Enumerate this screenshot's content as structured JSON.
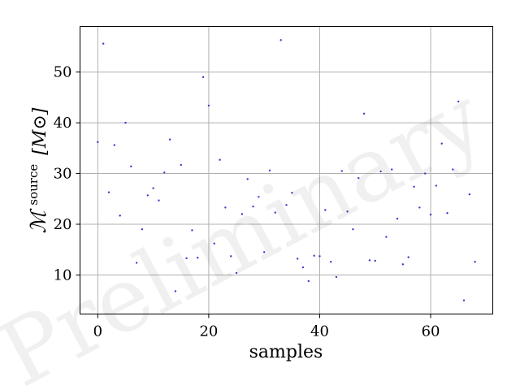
{
  "chart_data": {
    "type": "scatter",
    "xlabel": "samples",
    "ylabel_main": "ℳ",
    "ylabel_sup": "source",
    "ylabel_unit": "[M⊙]",
    "watermark": "Preliminary",
    "xlim": [
      -3.2,
      71.2
    ],
    "ylim": [
      2.3,
      59.0
    ],
    "x_ticks": [
      0,
      20,
      40,
      60
    ],
    "y_ticks": [
      10,
      20,
      30,
      40,
      50
    ],
    "grid": true,
    "colors": {
      "points": "#3a3acc",
      "grid": "#b0b0b0",
      "axes": "#000000",
      "watermark": "#e6e6e6"
    },
    "series": [
      {
        "x": [
          0,
          1,
          2,
          3,
          4,
          5,
          6,
          7,
          8,
          9,
          10,
          11,
          12,
          13,
          14,
          15,
          16,
          17,
          18,
          19,
          20,
          21,
          22,
          23,
          24,
          25,
          26,
          27,
          28,
          29,
          30,
          31,
          32,
          33,
          34,
          35,
          36,
          37,
          38,
          39,
          40,
          41,
          42,
          43,
          44,
          45,
          46,
          47,
          48,
          49,
          50,
          51,
          52,
          53,
          54,
          55,
          56,
          57,
          58,
          59,
          60,
          61,
          62,
          63,
          64,
          65,
          66,
          67,
          68
        ],
        "values": [
          36.2,
          55.6,
          26.3,
          35.6,
          21.7,
          40.0,
          31.4,
          12.4,
          19.0,
          25.7,
          27.1,
          24.7,
          30.2,
          36.7,
          6.8,
          31.7,
          13.3,
          18.8,
          13.4,
          49.0,
          43.4,
          16.2,
          32.7,
          23.3,
          13.7,
          10.4,
          22.0,
          28.9,
          23.5,
          25.4,
          14.5,
          30.6,
          22.3,
          56.3,
          23.8,
          26.2,
          13.2,
          11.5,
          8.8,
          13.8,
          13.7,
          22.8,
          12.6,
          9.6,
          30.5,
          22.5,
          19.0,
          29.1,
          41.8,
          12.9,
          12.8,
          30.4,
          17.5,
          30.8,
          21.1,
          12.1,
          13.5,
          27.4,
          23.3,
          30.0,
          21.9,
          27.6,
          35.9,
          22.2,
          30.8,
          44.2,
          5.0,
          25.9,
          12.6
        ]
      }
    ]
  }
}
